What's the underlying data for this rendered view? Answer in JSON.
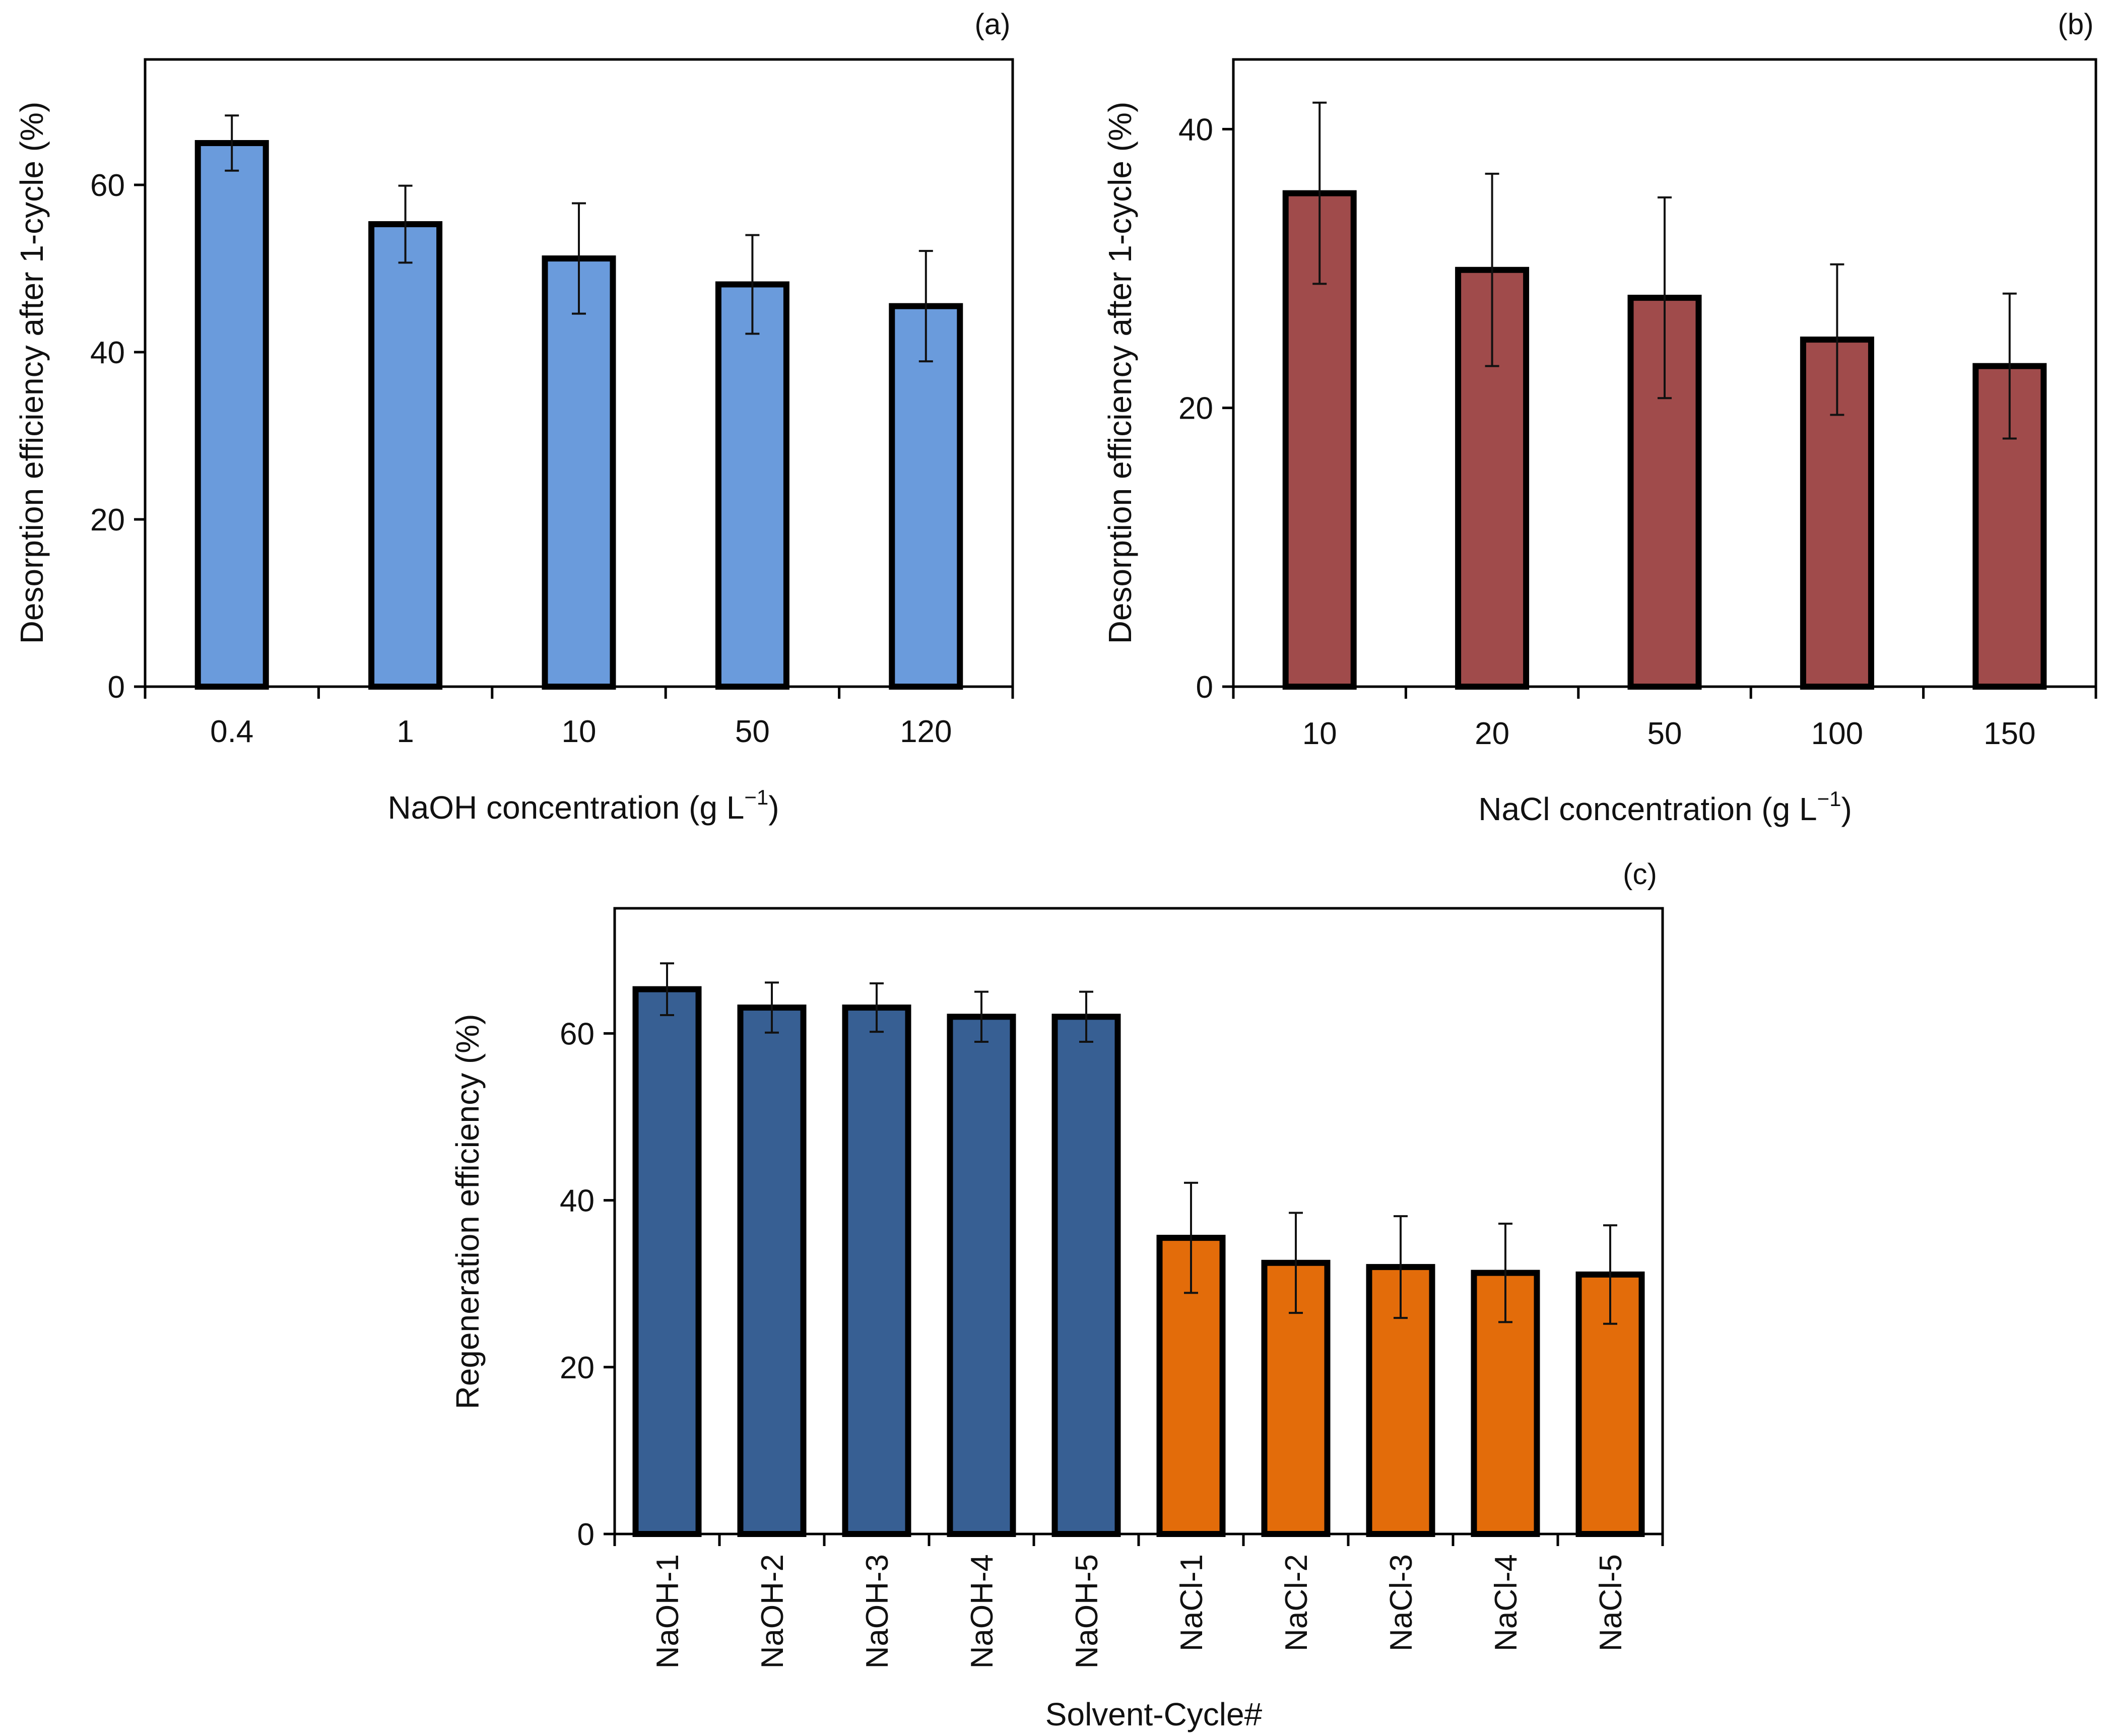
{
  "chart_data": [
    {
      "id": "a",
      "type": "bar",
      "panel_label": "(a)",
      "ylabel": "Desorption efficiency after 1-cycle (%)",
      "xlabel": "NaOH concentration (g L",
      "xlabel_sup": "−1",
      "xlabel_end": ")",
      "categories": [
        "0.4",
        "1",
        "10",
        "50",
        "120"
      ],
      "values": [
        65,
        55.3,
        51.2,
        48.1,
        45.5
      ],
      "errors": [
        3.3,
        4.6,
        6.6,
        5.9,
        6.6
      ],
      "ylim": [
        0,
        75
      ],
      "yticks": [
        0,
        20,
        40,
        60
      ],
      "bar_color": "#6a9bdc",
      "grid": false
    },
    {
      "id": "b",
      "type": "bar",
      "panel_label": "(b)",
      "ylabel": "Desorption efficiency after 1-cycle (%)",
      "xlabel": "NaCl concentration (g L",
      "xlabel_sup": "−1",
      "xlabel_end": ")",
      "categories": [
        "10",
        "20",
        "50",
        "100",
        "150"
      ],
      "values": [
        35.4,
        29.9,
        27.9,
        24.9,
        23
      ],
      "errors": [
        6.5,
        6.9,
        7.2,
        5.4,
        5.2
      ],
      "ylim": [
        0,
        45
      ],
      "yticks": [
        0,
        20,
        40
      ],
      "bar_color": "#a04b4b",
      "grid": false
    },
    {
      "id": "c",
      "type": "bar",
      "panel_label": "(c)",
      "ylabel": "Regeneration efficiency (%)",
      "xlabel": "Solvent-Cycle#",
      "categories": [
        "NaOH-1",
        "NaOH-2",
        "NaOH-3",
        "NaOH-4",
        "NaOH-5",
        "NaCl-1",
        "NaCl-2",
        "NaCl-3",
        "NaCl-4",
        "NaCl-5"
      ],
      "values": [
        65.3,
        63.1,
        63.1,
        62,
        62,
        35.5,
        32.5,
        32,
        31.3,
        31.1
      ],
      "errors": [
        3.1,
        3,
        2.9,
        3,
        3,
        6.6,
        6,
        6.1,
        5.9,
        5.9
      ],
      "ylim": [
        0,
        75
      ],
      "yticks": [
        0,
        20,
        40,
        60
      ],
      "bar_colors": [
        "#375f93",
        "#375f93",
        "#375f93",
        "#375f93",
        "#375f93",
        "#e36c0a",
        "#e36c0a",
        "#e36c0a",
        "#e36c0a",
        "#e36c0a"
      ],
      "grid": false
    }
  ]
}
